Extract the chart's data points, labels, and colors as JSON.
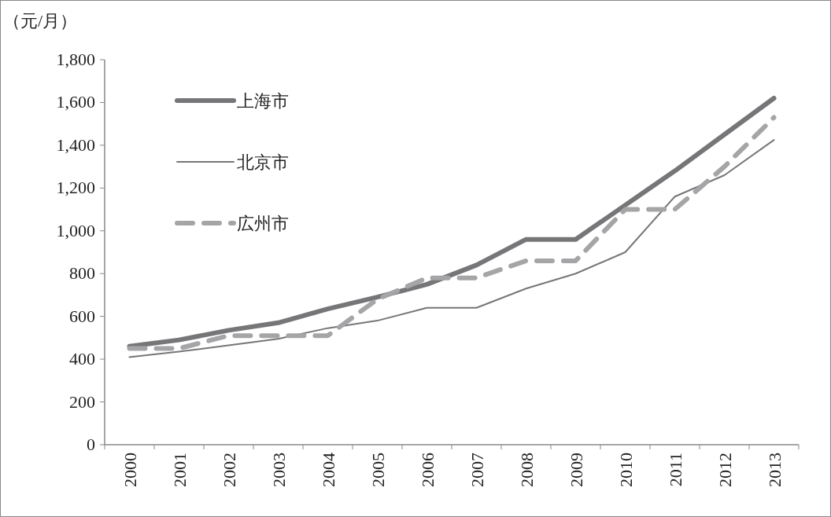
{
  "chart_data": {
    "type": "line",
    "ylabel": "（元/月）",
    "categories": [
      "2000",
      "2001",
      "2002",
      "2003",
      "2004",
      "2005",
      "2006",
      "2007",
      "2008",
      "2009",
      "2010",
      "2011",
      "2012",
      "2013"
    ],
    "ylim": [
      0,
      1800
    ],
    "yticks": [
      {
        "value": 0,
        "label": "0"
      },
      {
        "value": 200,
        "label": "200"
      },
      {
        "value": 400,
        "label": "400"
      },
      {
        "value": 600,
        "label": "600"
      },
      {
        "value": 800,
        "label": "800"
      },
      {
        "value": 1000,
        "label": "1,000"
      },
      {
        "value": 1200,
        "label": "1,200"
      },
      {
        "value": 1400,
        "label": "1,400"
      },
      {
        "value": 1600,
        "label": "1,600"
      },
      {
        "value": 1800,
        "label": "1,800"
      }
    ],
    "grid": false,
    "legend": "top left",
    "series": [
      {
        "name": "上海市",
        "color": "#767679",
        "line_style": "solid",
        "values": [
          460,
          490,
          535,
          570,
          635,
          690,
          750,
          840,
          960,
          960,
          1120,
          1280,
          1450,
          1620
        ]
      },
      {
        "name": "北京市",
        "color": "#767679",
        "line_style": "solid",
        "values": [
          410,
          435,
          465,
          495,
          545,
          580,
          640,
          640,
          730,
          800,
          900,
          1160,
          1260,
          1425
        ]
      },
      {
        "name": "広州市",
        "color": "#a5a5a7",
        "line_style": "dashed",
        "values": [
          450,
          450,
          510,
          510,
          510,
          680,
          780,
          780,
          860,
          860,
          1100,
          1100,
          1300,
          1530
        ]
      }
    ]
  }
}
